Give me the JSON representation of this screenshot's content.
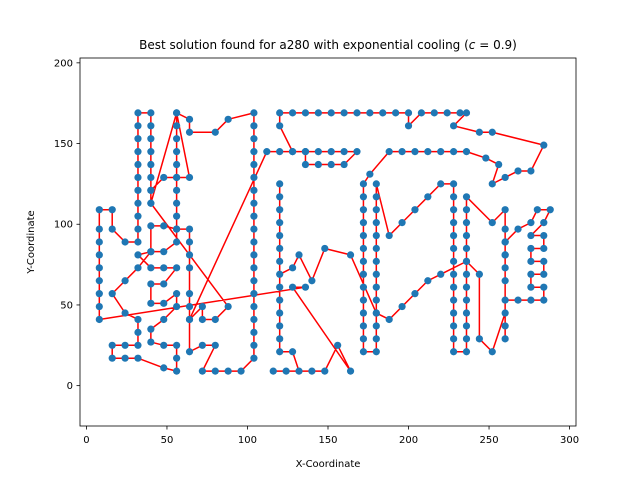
{
  "chart_data": {
    "type": "scatter",
    "title": "Best solution found for a280 with exponential cooling (c = 0.9)",
    "title_prefix": "Best solution found for a280 with exponential cooling (",
    "title_math_var": "c",
    "title_math_rest": " = 0.9)",
    "xlabel": "X-Coordinate",
    "ylabel": "Y-Coordinate",
    "xlim": [
      -4,
      304
    ],
    "ylim": [
      -25,
      203
    ],
    "xticks": [
      0,
      50,
      100,
      150,
      200,
      250,
      300
    ],
    "yticks": [
      0,
      50,
      100,
      150,
      200
    ],
    "grid": false,
    "point_color": "#1f77b4",
    "line_color": "#ff0000",
    "points": [
      [
        8,
        41
      ],
      [
        8,
        49
      ],
      [
        8,
        57
      ],
      [
        8,
        65
      ],
      [
        8,
        73
      ],
      [
        8,
        81
      ],
      [
        8,
        89
      ],
      [
        8,
        97
      ],
      [
        8,
        109
      ],
      [
        16,
        109
      ],
      [
        16,
        97
      ],
      [
        24,
        89
      ],
      [
        32,
        89
      ],
      [
        32,
        97
      ],
      [
        32,
        105
      ],
      [
        32,
        113
      ],
      [
        32,
        121
      ],
      [
        32,
        129
      ],
      [
        32,
        137
      ],
      [
        32,
        145
      ],
      [
        32,
        153
      ],
      [
        32,
        161
      ],
      [
        32,
        169
      ],
      [
        40,
        169
      ],
      [
        40,
        161
      ],
      [
        40,
        153
      ],
      [
        40,
        145
      ],
      [
        40,
        137
      ],
      [
        40,
        129
      ],
      [
        40,
        121
      ],
      [
        40,
        113
      ],
      [
        56,
        169
      ],
      [
        56,
        161
      ],
      [
        56,
        153
      ],
      [
        56,
        145
      ],
      [
        56,
        137
      ],
      [
        56,
        129
      ],
      [
        56,
        121
      ],
      [
        56,
        113
      ],
      [
        56,
        105
      ],
      [
        56,
        97
      ],
      [
        56,
        89
      ],
      [
        48,
        83
      ],
      [
        40,
        83
      ],
      [
        32,
        81
      ],
      [
        40,
        73
      ],
      [
        48,
        73
      ],
      [
        56,
        73
      ],
      [
        48,
        63
      ],
      [
        40,
        63
      ],
      [
        40,
        51
      ],
      [
        48,
        51
      ],
      [
        56,
        57
      ],
      [
        56,
        49
      ],
      [
        48,
        41
      ],
      [
        40,
        35
      ],
      [
        40,
        27
      ],
      [
        48,
        25
      ],
      [
        56,
        25
      ],
      [
        56,
        17
      ],
      [
        56,
        9
      ],
      [
        48,
        11
      ],
      [
        32,
        17
      ],
      [
        24,
        17
      ],
      [
        16,
        17
      ],
      [
        16,
        25
      ],
      [
        24,
        25
      ],
      [
        32,
        25
      ],
      [
        32,
        33
      ],
      [
        32,
        41
      ],
      [
        24,
        45
      ],
      [
        16,
        57
      ],
      [
        24,
        65
      ],
      [
        32,
        73
      ],
      [
        40,
        83
      ],
      [
        40,
        99
      ],
      [
        48,
        99
      ],
      [
        56,
        97
      ],
      [
        64,
        97
      ],
      [
        64,
        89
      ],
      [
        64,
        81
      ],
      [
        64,
        73
      ],
      [
        64,
        57
      ],
      [
        64,
        49
      ],
      [
        64,
        41
      ],
      [
        64,
        21
      ],
      [
        72,
        25
      ],
      [
        80,
        25
      ],
      [
        72,
        9
      ],
      [
        80,
        9
      ],
      [
        88,
        9
      ],
      [
        96,
        9
      ],
      [
        104,
        17
      ],
      [
        104,
        25
      ],
      [
        104,
        33
      ],
      [
        104,
        41
      ],
      [
        104,
        49
      ],
      [
        104,
        57
      ],
      [
        104,
        65
      ],
      [
        104,
        73
      ],
      [
        104,
        81
      ],
      [
        104,
        89
      ],
      [
        104,
        97
      ],
      [
        104,
        105
      ],
      [
        104,
        113
      ],
      [
        104,
        121
      ],
      [
        104,
        129
      ],
      [
        104,
        137
      ],
      [
        104,
        145
      ],
      [
        104,
        153
      ],
      [
        104,
        161
      ],
      [
        104,
        169
      ],
      [
        88,
        165
      ],
      [
        80,
        157
      ],
      [
        64,
        157
      ],
      [
        64,
        165
      ],
      [
        56,
        169
      ],
      [
        64,
        129
      ],
      [
        56,
        129
      ],
      [
        48,
        129
      ],
      [
        40,
        121
      ],
      [
        40,
        113
      ],
      [
        88,
        49
      ],
      [
        80,
        41
      ],
      [
        72,
        41
      ],
      [
        72,
        49
      ],
      [
        64,
        41
      ],
      [
        112,
        145
      ],
      [
        120,
        145
      ],
      [
        128,
        145
      ],
      [
        136,
        145
      ],
      [
        136,
        137
      ],
      [
        144,
        137
      ],
      [
        152,
        137
      ],
      [
        160,
        137
      ],
      [
        168,
        145
      ],
      [
        160,
        145
      ],
      [
        152,
        145
      ],
      [
        144,
        145
      ],
      [
        136,
        145
      ],
      [
        128,
        145
      ],
      [
        120,
        161
      ],
      [
        120,
        169
      ],
      [
        128,
        169
      ],
      [
        136,
        169
      ],
      [
        144,
        169
      ],
      [
        152,
        169
      ],
      [
        160,
        169
      ],
      [
        168,
        169
      ],
      [
        176,
        169
      ],
      [
        184,
        169
      ],
      [
        192,
        169
      ],
      [
        200,
        169
      ],
      [
        200,
        161
      ],
      [
        208,
        169
      ],
      [
        216,
        169
      ],
      [
        224,
        169
      ],
      [
        232,
        169
      ],
      [
        236,
        169
      ],
      [
        228,
        161
      ],
      [
        244,
        157
      ],
      [
        252,
        157
      ],
      [
        284,
        149
      ],
      [
        276,
        133
      ],
      [
        268,
        133
      ],
      [
        260,
        129
      ],
      [
        252,
        125
      ],
      [
        256,
        137
      ],
      [
        248,
        141
      ],
      [
        236,
        145
      ],
      [
        228,
        145
      ],
      [
        220,
        145
      ],
      [
        212,
        145
      ],
      [
        204,
        145
      ],
      [
        196,
        145
      ],
      [
        188,
        145
      ],
      [
        176,
        131
      ],
      [
        172,
        125
      ],
      [
        172,
        117
      ],
      [
        172,
        109
      ],
      [
        172,
        101
      ],
      [
        172,
        93
      ],
      [
        172,
        85
      ],
      [
        172,
        77
      ],
      [
        172,
        69
      ],
      [
        172,
        61
      ],
      [
        172,
        53
      ],
      [
        172,
        45
      ],
      [
        172,
        37
      ],
      [
        172,
        29
      ],
      [
        172,
        21
      ],
      [
        180,
        21
      ],
      [
        180,
        29
      ],
      [
        180,
        37
      ],
      [
        180,
        45
      ],
      [
        180,
        53
      ],
      [
        180,
        61
      ],
      [
        180,
        69
      ],
      [
        180,
        77
      ],
      [
        180,
        85
      ],
      [
        180,
        93
      ],
      [
        180,
        101
      ],
      [
        180,
        109
      ],
      [
        180,
        117
      ],
      [
        180,
        125
      ],
      [
        188,
        93
      ],
      [
        196,
        101
      ],
      [
        204,
        109
      ],
      [
        212,
        117
      ],
      [
        220,
        125
      ],
      [
        228,
        125
      ],
      [
        228,
        117
      ],
      [
        228,
        109
      ],
      [
        228,
        101
      ],
      [
        228,
        93
      ],
      [
        228,
        85
      ],
      [
        228,
        77
      ],
      [
        228,
        69
      ],
      [
        228,
        61
      ],
      [
        228,
        53
      ],
      [
        228,
        45
      ],
      [
        228,
        37
      ],
      [
        228,
        29
      ],
      [
        228,
        21
      ],
      [
        236,
        21
      ],
      [
        236,
        29
      ],
      [
        236,
        37
      ],
      [
        236,
        45
      ],
      [
        236,
        53
      ],
      [
        236,
        61
      ],
      [
        236,
        69
      ],
      [
        236,
        77
      ],
      [
        236,
        85
      ],
      [
        236,
        93
      ],
      [
        236,
        101
      ],
      [
        236,
        109
      ],
      [
        236,
        117
      ],
      [
        252,
        101
      ],
      [
        260,
        109
      ],
      [
        260,
        97
      ],
      [
        260,
        89
      ],
      [
        260,
        81
      ],
      [
        260,
        73
      ],
      [
        260,
        65
      ],
      [
        260,
        53
      ],
      [
        268,
        53
      ],
      [
        276,
        53
      ],
      [
        284,
        53
      ],
      [
        284,
        61
      ],
      [
        276,
        61
      ],
      [
        276,
        69
      ],
      [
        284,
        69
      ],
      [
        284,
        77
      ],
      [
        276,
        77
      ],
      [
        276,
        85
      ],
      [
        284,
        85
      ],
      [
        284,
        93
      ],
      [
        276,
        93
      ],
      [
        284,
        101
      ],
      [
        288,
        109
      ],
      [
        280,
        109
      ],
      [
        276,
        101
      ],
      [
        268,
        97
      ],
      [
        260,
        89
      ],
      [
        260,
        81
      ],
      [
        260,
        29
      ],
      [
        260,
        37
      ],
      [
        260,
        45
      ],
      [
        252,
        21
      ],
      [
        244,
        29
      ],
      [
        244,
        69
      ],
      [
        236,
        77
      ],
      [
        220,
        69
      ],
      [
        212,
        65
      ],
      [
        204,
        57
      ],
      [
        196,
        49
      ],
      [
        188,
        41
      ],
      [
        180,
        45
      ],
      [
        164,
        81
      ],
      [
        148,
        85
      ],
      [
        140,
        65
      ],
      [
        132,
        81
      ],
      [
        128,
        73
      ],
      [
        120,
        69
      ],
      [
        120,
        77
      ],
      [
        120,
        85
      ],
      [
        120,
        93
      ],
      [
        120,
        101
      ],
      [
        120,
        109
      ],
      [
        120,
        117
      ],
      [
        120,
        125
      ],
      [
        120,
        61
      ],
      [
        120,
        53
      ],
      [
        120,
        45
      ],
      [
        120,
        37
      ],
      [
        120,
        29
      ],
      [
        120,
        21
      ],
      [
        128,
        21
      ],
      [
        132,
        9
      ],
      [
        124,
        9
      ],
      [
        116,
        9
      ],
      [
        140,
        9
      ],
      [
        148,
        9
      ],
      [
        156,
        25
      ],
      [
        164,
        9
      ],
      [
        128,
        61
      ],
      [
        136,
        61
      ]
    ]
  }
}
